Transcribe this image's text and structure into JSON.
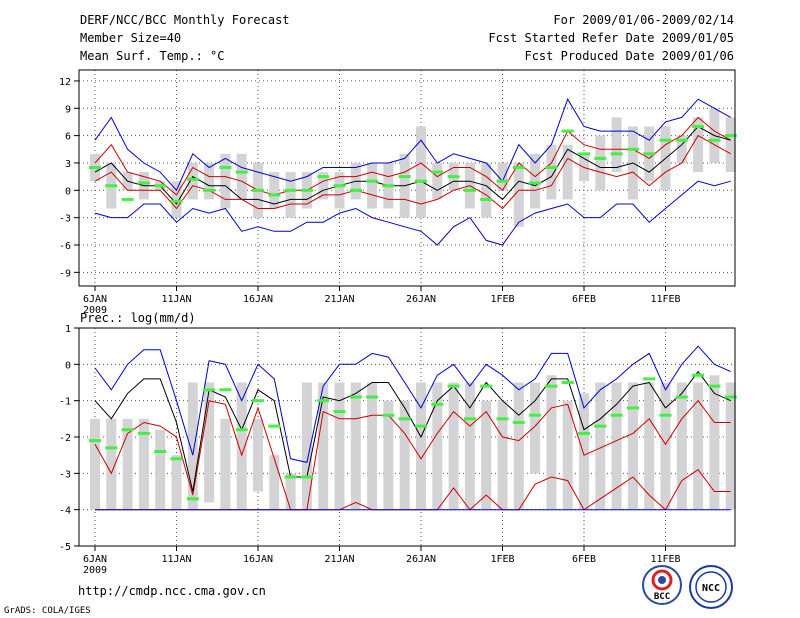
{
  "header": {
    "left": [
      "DERF/NCC/BCC Monthly Forecast",
      "Member Size=40",
      "Mean Surf. Temp.: °C"
    ],
    "right": [
      "For 2009/01/06-2009/02/14",
      "Fcst Started Refer Date 2009/01/05",
      "Fcst Produced Date 2009/01/06"
    ]
  },
  "footer": {
    "url": "http://cmdp.ncc.cma.gov.cn",
    "credit": "GrADS: COLA/IGES"
  },
  "logos": {
    "bcc": "BCC",
    "ncc": "NCC"
  },
  "colors": {
    "grid": "#555555",
    "box": "#d3d3d6",
    "green": "#44ee44",
    "blue": "#0000cc",
    "red": "#cc0000",
    "black": "#000000"
  },
  "chart_data": [
    {
      "type": "box",
      "title": "Mean Surf. Temp.: °C",
      "ylim": [
        -10.5,
        13.2
      ],
      "yticks": [
        12,
        9,
        6,
        3,
        0,
        -3,
        -6,
        -9
      ],
      "ytick_labels": [
        "12",
        "9",
        "6",
        "3",
        "0",
        "-3",
        "-6",
        "-9"
      ],
      "xtick_days": [
        1,
        6,
        11,
        16,
        21,
        26,
        31,
        36
      ],
      "xtick_labels": [
        "6JAN",
        "11JAN",
        "16JAN",
        "21JAN",
        "26JAN",
        "1FEB",
        "6FEB",
        "11FEB"
      ],
      "year_label": "2009",
      "box_low": [
        1,
        -2,
        0,
        -1,
        0,
        -3,
        -1,
        -1,
        -2,
        -1,
        -3,
        -2,
        -3,
        -2,
        -1,
        -2,
        -1,
        -2,
        -2,
        -3,
        -3,
        -1,
        0,
        -2,
        -3,
        0,
        -4,
        -2,
        -1,
        -1,
        1,
        0,
        2,
        -1,
        1,
        0,
        3,
        2,
        3,
        2
      ],
      "box_high": [
        4,
        3,
        2,
        2,
        1,
        1,
        3,
        3,
        4,
        4,
        3,
        2,
        2,
        2,
        2,
        2,
        3,
        3,
        3,
        4,
        7,
        3,
        3,
        3,
        3,
        3,
        3,
        4,
        5,
        5,
        4,
        6,
        8,
        7,
        7,
        7,
        6,
        8,
        9,
        8
      ],
      "mean": [
        2.5,
        0.5,
        -1.0,
        0.8,
        0.5,
        -1.2,
        1.2,
        0.0,
        2.5,
        2.0,
        0.0,
        -0.5,
        0.0,
        0.0,
        1.5,
        0.5,
        0.0,
        1.0,
        0.5,
        1.5,
        1.0,
        2.0,
        1.5,
        0.0,
        -1.0,
        1.0,
        2.5,
        0.8,
        2.5,
        6.5,
        4.0,
        3.5,
        4.0,
        4.5,
        4.0,
        5.5,
        5.5,
        7.0,
        5.5,
        6.0
      ],
      "series": [
        {
          "name": "max",
          "color": "blue",
          "values": [
            5.5,
            8.0,
            4.5,
            3.0,
            2.0,
            0.0,
            4.0,
            2.5,
            3.5,
            2.5,
            2.0,
            1.5,
            1.0,
            1.5,
            2.5,
            2.5,
            2.5,
            3.0,
            3.0,
            3.5,
            5.5,
            3.0,
            4.0,
            3.5,
            3.0,
            1.0,
            5.0,
            3.0,
            5.0,
            10.0,
            7.0,
            6.5,
            6.5,
            6.5,
            5.5,
            7.5,
            8.0,
            10.0,
            9.0,
            8.0
          ]
        },
        {
          "name": "p90",
          "color": "red",
          "values": [
            3.0,
            5.0,
            2.0,
            1.5,
            1.0,
            -0.5,
            2.5,
            1.5,
            1.5,
            1.0,
            0.0,
            -0.5,
            0.0,
            0.0,
            1.0,
            1.5,
            1.5,
            2.0,
            1.5,
            2.0,
            3.0,
            1.5,
            2.5,
            2.5,
            1.5,
            0.0,
            3.0,
            1.5,
            3.0,
            6.5,
            5.0,
            4.5,
            4.5,
            4.5,
            3.5,
            5.0,
            6.0,
            8.0,
            6.5,
            5.5
          ]
        },
        {
          "name": "median",
          "color": "black",
          "values": [
            2.0,
            3.0,
            1.0,
            0.5,
            0.5,
            -1.5,
            1.5,
            0.5,
            0.5,
            -1.0,
            -1.0,
            -1.5,
            -1.0,
            -1.0,
            0.0,
            0.5,
            1.0,
            1.0,
            0.5,
            0.5,
            1.0,
            0.0,
            1.0,
            1.0,
            0.5,
            -1.0,
            1.0,
            0.5,
            1.5,
            4.5,
            3.5,
            2.5,
            2.5,
            3.0,
            2.0,
            3.5,
            5.0,
            7.0,
            6.0,
            5.5
          ]
        },
        {
          "name": "p10",
          "color": "red",
          "values": [
            1.0,
            2.0,
            0.0,
            0.0,
            0.0,
            -2.0,
            0.5,
            0.0,
            -1.0,
            -1.0,
            -2.0,
            -2.0,
            -1.5,
            -1.5,
            -0.5,
            -0.5,
            0.0,
            -0.5,
            -1.0,
            -1.0,
            -1.5,
            -1.0,
            0.0,
            0.5,
            -0.5,
            -2.0,
            0.0,
            0.0,
            0.5,
            3.5,
            2.5,
            2.0,
            1.5,
            2.0,
            0.5,
            2.0,
            3.0,
            6.0,
            5.0,
            4.0
          ]
        },
        {
          "name": "min",
          "color": "blue",
          "values": [
            -2.5,
            -3.0,
            -3.0,
            -1.5,
            -1.5,
            -3.5,
            -2.0,
            -2.5,
            -2.0,
            -4.5,
            -4.0,
            -4.5,
            -4.5,
            -3.5,
            -3.5,
            -2.5,
            -2.0,
            -3.0,
            -3.5,
            -4.0,
            -4.5,
            -6.0,
            -4.0,
            -3.0,
            -5.5,
            -6.0,
            -3.5,
            -2.5,
            -2.0,
            -1.5,
            -3.0,
            -3.0,
            -1.5,
            -1.5,
            -3.5,
            -2.0,
            -0.5,
            1.0,
            0.5,
            1.0
          ]
        }
      ]
    },
    {
      "type": "box",
      "title": "Prec.: log(mm/d)",
      "ylim": [
        -5.0,
        1.0
      ],
      "yticks": [
        1,
        0,
        -1,
        -2,
        -3,
        -4,
        -5
      ],
      "ytick_labels": [
        "1",
        "0",
        "-1",
        "-2",
        "-3",
        "-4",
        "-5"
      ],
      "xtick_days": [
        1,
        6,
        11,
        16,
        21,
        26,
        31,
        36
      ],
      "xtick_labels": [
        "6JAN",
        "11JAN",
        "16JAN",
        "21JAN",
        "26JAN",
        "1FEB",
        "6FEB",
        "11FEB"
      ],
      "year_label": "2009",
      "box_low": [
        -4,
        -4,
        -4,
        -4,
        -4,
        -4,
        -4,
        -3.8,
        -4,
        -4,
        -3.5,
        -4,
        -4,
        -4,
        -4,
        -4,
        -4,
        -4,
        -4,
        -4,
        -4,
        -4,
        -4,
        -4,
        -4,
        -4,
        -4,
        -3,
        -4,
        -4,
        -4,
        -4,
        -4,
        -4,
        -4,
        -4,
        -4,
        -4,
        -4,
        -4
      ],
      "box_high": [
        -1.5,
        -1.5,
        -1.5,
        -1.5,
        -1.8,
        -2.5,
        -0.5,
        -0.5,
        -1.5,
        -0.5,
        -1.5,
        -2.5,
        -3.0,
        -0.5,
        -0.5,
        -0.5,
        -0.5,
        -0.5,
        -1.0,
        -1.0,
        -0.5,
        -0.5,
        -0.5,
        -0.5,
        -1.0,
        -1.0,
        -0.5,
        -0.5,
        -0.3,
        -1.0,
        -0.8,
        -0.5,
        -0.5,
        -0.5,
        -0.5,
        -0.5,
        -0.5,
        -0.5,
        -0.3,
        -0.5
      ],
      "mean": [
        -2.1,
        -2.3,
        -1.8,
        -1.9,
        -2.4,
        -2.6,
        -3.7,
        -0.7,
        -0.7,
        -1.8,
        -1.0,
        -1.7,
        -3.1,
        -3.1,
        -1.0,
        -1.3,
        -0.9,
        -0.9,
        -1.4,
        -1.5,
        -1.7,
        -1.1,
        -0.6,
        -1.5,
        -0.6,
        -1.5,
        -1.6,
        -1.4,
        -0.6,
        -0.5,
        -1.9,
        -1.7,
        -1.4,
        -1.2,
        -0.4,
        -1.4,
        -0.9,
        -0.3,
        -0.6,
        -0.9
      ],
      "series": [
        {
          "name": "max",
          "color": "blue",
          "values": [
            -0.1,
            -0.7,
            0.0,
            0.4,
            0.4,
            -1.0,
            -2.5,
            0.1,
            0.0,
            -1.0,
            0.0,
            -0.4,
            -2.6,
            -2.7,
            -0.6,
            0.0,
            0.0,
            0.3,
            0.2,
            -0.5,
            -1.2,
            -0.3,
            0.0,
            -0.6,
            0.0,
            -0.3,
            -0.7,
            -0.4,
            0.3,
            0.3,
            -1.2,
            -0.7,
            -0.4,
            0.0,
            0.3,
            -0.7,
            0.0,
            0.5,
            0.0,
            -0.2
          ]
        },
        {
          "name": "p90",
          "color": "red",
          "values": [
            -2.2,
            -3.0,
            -1.9,
            -1.6,
            -1.7,
            -2.0,
            -3.6,
            -1.0,
            -1.1,
            -2.5,
            -1.2,
            -2.6,
            -4.0,
            -4.0,
            -1.3,
            -1.5,
            -1.5,
            -1.4,
            -1.4,
            -1.9,
            -2.6,
            -1.9,
            -1.3,
            -1.7,
            -1.3,
            -2.0,
            -2.1,
            -1.7,
            -1.2,
            -1.1,
            -2.5,
            -2.3,
            -2.1,
            -1.9,
            -1.5,
            -2.2,
            -1.5,
            -1.0,
            -1.6,
            -1.6
          ]
        },
        {
          "name": "median",
          "color": "black",
          "values": [
            -1.0,
            -1.5,
            -0.8,
            -0.4,
            -0.4,
            -1.6,
            -3.5,
            -0.7,
            -0.9,
            -1.8,
            -0.7,
            -1.0,
            -3.1,
            -3.1,
            -0.9,
            -1.0,
            -0.8,
            -0.5,
            -0.5,
            -1.2,
            -2.0,
            -1.0,
            -0.6,
            -1.2,
            -0.5,
            -1.0,
            -1.4,
            -1.0,
            -0.4,
            -0.4,
            -1.8,
            -1.5,
            -1.1,
            -0.6,
            -0.5,
            -1.2,
            -0.8,
            -0.2,
            -0.8,
            -1.0
          ]
        },
        {
          "name": "p10",
          "color": "red",
          "values": [
            -4.0,
            -4.0,
            -4.0,
            -4.0,
            -4.0,
            -4.0,
            -4.0,
            -4.0,
            -4.0,
            -4.0,
            -4.0,
            -4.0,
            -4.0,
            -4.0,
            -4.0,
            -4.0,
            -3.8,
            -4.0,
            -4.0,
            -4.0,
            -4.0,
            -4.0,
            -3.4,
            -4.0,
            -3.6,
            -4.0,
            -4.0,
            -3.3,
            -3.1,
            -3.2,
            -4.0,
            -3.7,
            -3.4,
            -3.1,
            -3.6,
            -4.0,
            -3.2,
            -2.9,
            -3.5,
            -3.5
          ]
        },
        {
          "name": "min",
          "color": "blue",
          "values": [
            -4.0,
            -4.0,
            -4.0,
            -4.0,
            -4.0,
            -4.0,
            -4.0,
            -4.0,
            -4.0,
            -4.0,
            -4.0,
            -4.0,
            -4.0,
            -4.0,
            -4.0,
            -4.0,
            -4.0,
            -4.0,
            -4.0,
            -4.0,
            -4.0,
            -4.0,
            -4.0,
            -4.0,
            -4.0,
            -4.0,
            -4.0,
            -4.0,
            -4.0,
            -4.0,
            -4.0,
            -4.0,
            -4.0,
            -4.0,
            -4.0,
            -4.0,
            -4.0,
            -4.0,
            -4.0,
            -4.0
          ]
        }
      ]
    }
  ]
}
